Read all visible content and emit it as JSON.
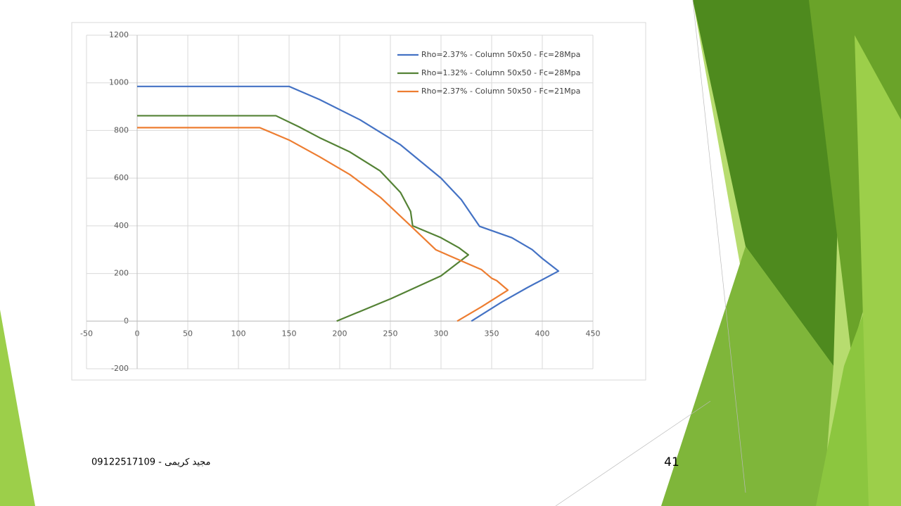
{
  "chart_data": {
    "type": "line",
    "xlim": [
      -50,
      450
    ],
    "xticks": [
      -50,
      0,
      50,
      100,
      150,
      200,
      250,
      300,
      350,
      400,
      450
    ],
    "ylim": [
      -200,
      1200
    ],
    "yticks": [
      -200,
      0,
      200,
      400,
      600,
      800,
      1000,
      1200
    ],
    "grid": true,
    "legend": "top-right",
    "series": [
      {
        "name": "Rho=2.37% - Column 50x50 - Fc=28Mpa",
        "color": "#4472c4",
        "x": [
          0,
          150,
          180,
          220,
          260,
          300,
          320,
          338,
          370,
          390,
          400,
          416,
          385,
          360,
          330
        ],
        "y": [
          985,
          985,
          930,
          845,
          740,
          600,
          510,
          398,
          350,
          300,
          263,
          210,
          140,
          80,
          0
        ]
      },
      {
        "name": "Rho=1.32% - Column 50x50 - Fc=28Mpa",
        "color": "#548235",
        "x": [
          0,
          137,
          160,
          180,
          210,
          240,
          260,
          270,
          272,
          300,
          318,
          327,
          300,
          251,
          197
        ],
        "y": [
          862,
          862,
          815,
          770,
          710,
          630,
          540,
          460,
          400,
          350,
          307,
          278,
          190,
          95,
          0
        ]
      },
      {
        "name": "Rho=2.37% - Column 50x50 - Fc=21Mpa",
        "color": "#ed7d31",
        "x": [
          0,
          121,
          150,
          180,
          210,
          240,
          265,
          270,
          295,
          340,
          350,
          355,
          366,
          340,
          316
        ],
        "y": [
          812,
          812,
          760,
          690,
          615,
          520,
          420,
          400,
          299,
          216,
          180,
          170,
          130,
          60,
          0
        ]
      }
    ]
  },
  "footer": "مجید کریمی - 09122517109",
  "slide_number": "41"
}
